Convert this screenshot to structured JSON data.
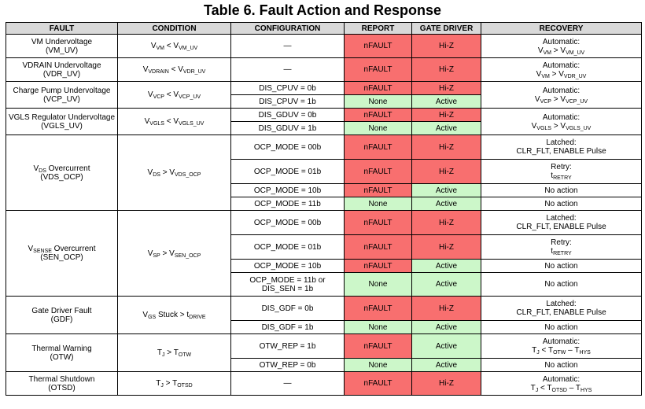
{
  "title": "Table 6. Fault Action and Response",
  "headers": {
    "fault": "FAULT",
    "condition": "CONDITION",
    "configuration": "CONFIGURATION",
    "report": "REPORT",
    "gate_driver": "GATE DRIVER",
    "recovery": "RECOVERY"
  },
  "labels": {
    "nfault": "nFAULT",
    "none": "None",
    "hiz": "Hi-Z",
    "active": "Active",
    "dash": "—",
    "automatic": "Automatic:",
    "latched": "Latched:",
    "retry": "Retry:",
    "no_action": "No action",
    "clr_flt": "CLR_FLT, ENABLE Pulse"
  },
  "vm_uv": {
    "fault_line1": "VM Undervoltage",
    "fault_line2": "(VM_UV)"
  },
  "vdr_uv": {
    "fault_line1": "VDRAIN Undervoltage",
    "fault_line2": "(VDR_UV)"
  },
  "vcp_uv": {
    "fault_line1": "Charge Pump Undervoltage",
    "fault_line2": "(VCP_UV)",
    "config_a": "DIS_CPUV = 0b",
    "config_b": "DIS_CPUV = 1b"
  },
  "vgls_uv": {
    "fault_line1": "VGLS Regulator Undervoltage",
    "fault_line2": "(VGLS_UV)",
    "config_a": "DIS_GDUV = 0b",
    "config_b": "DIS_GDUV = 1b"
  },
  "vds_ocp": {
    "fault_line1": " Overcurrent",
    "fault_line2": "(VDS_OCP)",
    "config_a": "OCP_MODE = 00b",
    "config_b": "OCP_MODE = 01b",
    "config_c": "OCP_MODE = 10b",
    "config_d": "OCP_MODE = 11b"
  },
  "sen_ocp": {
    "fault_line1": " Overcurrent",
    "fault_line2": "(SEN_OCP)",
    "config_a": "OCP_MODE = 00b",
    "config_b": "OCP_MODE = 01b",
    "config_c": "OCP_MODE = 10b",
    "config_d_line1": "OCP_MODE = 11b or",
    "config_d_line2": "DIS_SEN = 1b"
  },
  "gdf": {
    "fault_line1": "Gate Driver Fault",
    "fault_line2": "(GDF)",
    "condition_text": " Stuck > ",
    "config_a": "DIS_GDF = 0b",
    "config_b": "DIS_GDF = 1b"
  },
  "otw": {
    "fault_line1": "Thermal Warning",
    "fault_line2": "(OTW)",
    "config_a": "OTW_REP = 1b",
    "config_b": "OTW_REP = 0b"
  },
  "otsd": {
    "fault_line1": "Thermal Shutdown",
    "fault_line2": "(OTSD)"
  },
  "sym": {
    "v": "V",
    "vm": "VM",
    "vm_uv": "VM_UV",
    "vdrain": "VDRAIN",
    "vdr_uv": "VDR_UV",
    "vcp": "VCP",
    "vcp_uv": "VCP_UV",
    "vgls": "VGLS",
    "vgls_uv": "VGLS_UV",
    "ds": "DS",
    "vds_ocp": "VDS_OCP",
    "sense": "SENSE",
    "sp": "SP",
    "sen_ocp": "SEN_OCP",
    "gs": "GS",
    "t_small": "t",
    "drive": "DRIVE",
    "retry": "RETRY",
    "t": "T",
    "j": "J",
    "otw": "OTW",
    "otsd": "OTSD",
    "hys": "HYS",
    "lt": " < ",
    "gt": " > ",
    "minus": " – "
  }
}
